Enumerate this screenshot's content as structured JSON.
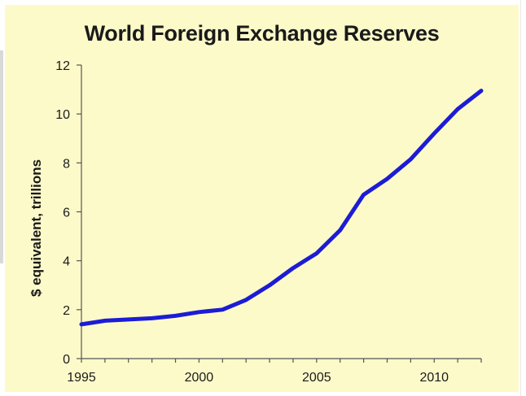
{
  "chart_data": {
    "type": "line",
    "title": "World Foreign Exchange Reserves",
    "xlabel": "",
    "ylabel": "$ equivalent, trillions",
    "xlim": [
      1995,
      2012
    ],
    "ylim": [
      0,
      12
    ],
    "x_ticks": [
      1995,
      2000,
      2005,
      2010
    ],
    "y_ticks": [
      0,
      2,
      4,
      6,
      8,
      10,
      12
    ],
    "grid": false,
    "legend": "none",
    "line_color": "#1c1cd6",
    "background_color": "#fdfac9",
    "series": [
      {
        "x": [
          1995,
          1996,
          1997,
          1998,
          1999,
          2000,
          2001,
          2002,
          2003,
          2004,
          2005,
          2006,
          2007,
          2008,
          2009,
          2010,
          2011,
          2012
        ],
        "values": [
          1.4,
          1.55,
          1.6,
          1.65,
          1.75,
          1.9,
          2.0,
          2.4,
          3.0,
          3.7,
          4.3,
          5.25,
          6.7,
          7.35,
          8.15,
          9.2,
          10.2,
          10.95
        ]
      }
    ]
  }
}
